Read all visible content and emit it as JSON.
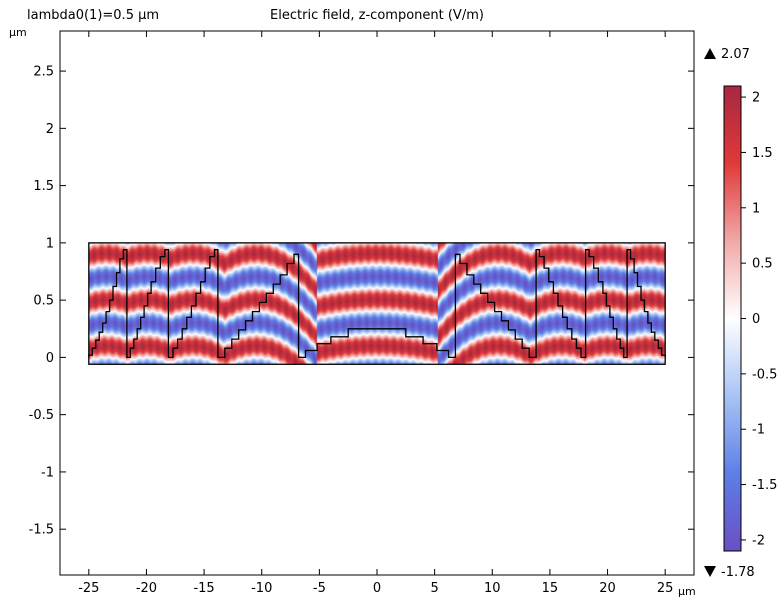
{
  "header": {
    "left_label": "lambda0(1)=0.5 µm",
    "title": "Electric field, z-component (V/m)"
  },
  "chart_data": {
    "type": "heatmap",
    "title": "Electric field, z-component (V/m)",
    "parameter_label": "lambda0(1)=0.5 µm",
    "xlabel": "µm",
    "ylabel": "µm",
    "xlim": [
      -27.5,
      27.5
    ],
    "ylim": [
      -1.9,
      2.85
    ],
    "x_ticks": [
      -25,
      -20,
      -15,
      -10,
      -5,
      0,
      5,
      10,
      15,
      20,
      25
    ],
    "y_ticks": [
      -1.5,
      -1,
      -0.5,
      0,
      0.5,
      1,
      1.5,
      2,
      2.5
    ],
    "x_tick_labels": [
      "-25",
      "-20",
      "-15",
      "-10",
      "-5",
      "0",
      "5",
      "10",
      "15",
      "20",
      "25"
    ],
    "y_tick_labels": [
      "-1.5",
      "-1",
      "-0.5",
      "0",
      "0.5",
      "1",
      "1.5",
      "2",
      "2.5"
    ],
    "field_region": {
      "x": [
        -25,
        25
      ],
      "y": [
        -0.06,
        1.0
      ]
    },
    "colorbar": {
      "max_label": "2.07",
      "min_label": "-1.78",
      "range": [
        -2.1,
        2.1
      ],
      "ticks": [
        2,
        1.5,
        1,
        0.5,
        0,
        -0.5,
        -1,
        -1.5,
        -2
      ],
      "tick_labels": [
        "2",
        "1.5",
        "1",
        "0.5",
        "0",
        "-0.5",
        "-1",
        "-1.5",
        "-2"
      ],
      "colors": [
        "#6a4fc4",
        "#5d7fe6",
        "#a8c4f4",
        "#ffffff",
        "#f2a8a8",
        "#e03a3a",
        "#a82840"
      ]
    },
    "structure_outline": [
      [
        -25,
        0
      ],
      [
        -25,
        0.02
      ],
      [
        -24.7,
        0.02
      ],
      [
        -24.7,
        0.08
      ],
      [
        -24.4,
        0.08
      ],
      [
        -24.4,
        0.15
      ],
      [
        -24.1,
        0.15
      ],
      [
        -24.1,
        0.22
      ],
      [
        -23.8,
        0.22
      ],
      [
        -23.8,
        0.3
      ],
      [
        -23.5,
        0.3
      ],
      [
        -23.5,
        0.4
      ],
      [
        -23.2,
        0.4
      ],
      [
        -23.2,
        0.5
      ],
      [
        -22.9,
        0.5
      ],
      [
        -22.9,
        0.62
      ],
      [
        -22.6,
        0.62
      ],
      [
        -22.6,
        0.74
      ],
      [
        -22.3,
        0.74
      ],
      [
        -22.3,
        0.86
      ],
      [
        -22.0,
        0.86
      ],
      [
        -22.0,
        0.94
      ],
      [
        -21.7,
        0.94
      ],
      [
        -21.7,
        0
      ],
      [
        -21.4,
        0
      ],
      [
        -21.4,
        0.08
      ],
      [
        -21.1,
        0.08
      ],
      [
        -21.1,
        0.16
      ],
      [
        -20.8,
        0.16
      ],
      [
        -20.8,
        0.25
      ],
      [
        -20.5,
        0.25
      ],
      [
        -20.5,
        0.35
      ],
      [
        -20.2,
        0.35
      ],
      [
        -20.2,
        0.45
      ],
      [
        -19.9,
        0.45
      ],
      [
        -19.9,
        0.56
      ],
      [
        -19.6,
        0.56
      ],
      [
        -19.6,
        0.66
      ],
      [
        -19.2,
        0.66
      ],
      [
        -19.2,
        0.78
      ],
      [
        -18.8,
        0.78
      ],
      [
        -18.8,
        0.88
      ],
      [
        -18.4,
        0.88
      ],
      [
        -18.4,
        0.94
      ],
      [
        -18.1,
        0.94
      ],
      [
        -18.1,
        0
      ],
      [
        -17.7,
        0
      ],
      [
        -17.7,
        0.08
      ],
      [
        -17.3,
        0.08
      ],
      [
        -17.3,
        0.16
      ],
      [
        -16.9,
        0.16
      ],
      [
        -16.9,
        0.25
      ],
      [
        -16.5,
        0.25
      ],
      [
        -16.5,
        0.35
      ],
      [
        -16.1,
        0.35
      ],
      [
        -16.1,
        0.45
      ],
      [
        -15.7,
        0.45
      ],
      [
        -15.7,
        0.56
      ],
      [
        -15.3,
        0.56
      ],
      [
        -15.3,
        0.66
      ],
      [
        -14.9,
        0.66
      ],
      [
        -14.9,
        0.78
      ],
      [
        -14.5,
        0.78
      ],
      [
        -14.5,
        0.88
      ],
      [
        -14.1,
        0.88
      ],
      [
        -14.1,
        0.94
      ],
      [
        -13.8,
        0.94
      ],
      [
        -13.8,
        0
      ],
      [
        -13.2,
        0
      ],
      [
        -13.2,
        0.08
      ],
      [
        -12.6,
        0.08
      ],
      [
        -12.6,
        0.16
      ],
      [
        -12.0,
        0.16
      ],
      [
        -12.0,
        0.24
      ],
      [
        -11.4,
        0.24
      ],
      [
        -11.4,
        0.32
      ],
      [
        -10.8,
        0.32
      ],
      [
        -10.8,
        0.4
      ],
      [
        -10.2,
        0.4
      ],
      [
        -10.2,
        0.48
      ],
      [
        -9.6,
        0.48
      ],
      [
        -9.6,
        0.56
      ],
      [
        -9.0,
        0.56
      ],
      [
        -9.0,
        0.64
      ],
      [
        -8.4,
        0.64
      ],
      [
        -8.4,
        0.72
      ],
      [
        -7.8,
        0.72
      ],
      [
        -7.8,
        0.82
      ],
      [
        -7.2,
        0.82
      ],
      [
        -7.2,
        0.9
      ],
      [
        -6.8,
        0.9
      ],
      [
        -6.8,
        0
      ],
      [
        -6.2,
        0
      ],
      [
        -6.2,
        0.06
      ],
      [
        -5.2,
        0.06
      ],
      [
        -5.2,
        0.12
      ],
      [
        -4.0,
        0.12
      ],
      [
        -4.0,
        0.18
      ],
      [
        -2.5,
        0.18
      ],
      [
        -2.5,
        0.25
      ],
      [
        2.5,
        0.25
      ],
      [
        2.5,
        0.18
      ],
      [
        4.0,
        0.18
      ],
      [
        4.0,
        0.12
      ],
      [
        5.2,
        0.12
      ],
      [
        5.2,
        0.06
      ],
      [
        6.2,
        0.06
      ],
      [
        6.2,
        0
      ],
      [
        6.8,
        0
      ],
      [
        6.8,
        0.9
      ],
      [
        7.2,
        0.9
      ],
      [
        7.2,
        0.82
      ],
      [
        7.8,
        0.82
      ],
      [
        7.8,
        0.72
      ],
      [
        8.4,
        0.72
      ],
      [
        8.4,
        0.64
      ],
      [
        9.0,
        0.64
      ],
      [
        9.0,
        0.56
      ],
      [
        9.6,
        0.56
      ],
      [
        9.6,
        0.48
      ],
      [
        10.2,
        0.48
      ],
      [
        10.2,
        0.4
      ],
      [
        10.8,
        0.4
      ],
      [
        10.8,
        0.32
      ],
      [
        11.4,
        0.32
      ],
      [
        11.4,
        0.24
      ],
      [
        12.0,
        0.24
      ],
      [
        12.0,
        0.16
      ],
      [
        12.6,
        0.16
      ],
      [
        12.6,
        0.08
      ],
      [
        13.2,
        0.08
      ],
      [
        13.2,
        0
      ],
      [
        13.8,
        0
      ],
      [
        13.8,
        0.94
      ],
      [
        14.1,
        0.94
      ],
      [
        14.1,
        0.88
      ],
      [
        14.5,
        0.88
      ],
      [
        14.5,
        0.78
      ],
      [
        14.9,
        0.78
      ],
      [
        14.9,
        0.66
      ],
      [
        15.3,
        0.66
      ],
      [
        15.3,
        0.56
      ],
      [
        15.7,
        0.56
      ],
      [
        15.7,
        0.45
      ],
      [
        16.1,
        0.45
      ],
      [
        16.1,
        0.35
      ],
      [
        16.5,
        0.35
      ],
      [
        16.5,
        0.25
      ],
      [
        16.9,
        0.25
      ],
      [
        16.9,
        0.16
      ],
      [
        17.3,
        0.16
      ],
      [
        17.3,
        0.08
      ],
      [
        17.7,
        0.08
      ],
      [
        17.7,
        0
      ],
      [
        18.1,
        0
      ],
      [
        18.1,
        0.94
      ],
      [
        18.4,
        0.94
      ],
      [
        18.4,
        0.88
      ],
      [
        18.8,
        0.88
      ],
      [
        18.8,
        0.78
      ],
      [
        19.2,
        0.78
      ],
      [
        19.2,
        0.66
      ],
      [
        19.6,
        0.66
      ],
      [
        19.6,
        0.56
      ],
      [
        19.9,
        0.56
      ],
      [
        19.9,
        0.45
      ],
      [
        20.2,
        0.45
      ],
      [
        20.2,
        0.35
      ],
      [
        20.5,
        0.35
      ],
      [
        20.5,
        0.25
      ],
      [
        20.8,
        0.25
      ],
      [
        20.8,
        0.16
      ],
      [
        21.1,
        0.16
      ],
      [
        21.1,
        0.08
      ],
      [
        21.4,
        0.08
      ],
      [
        21.4,
        0
      ],
      [
        21.7,
        0
      ],
      [
        21.7,
        0.94
      ],
      [
        22.0,
        0.94
      ],
      [
        22.0,
        0.86
      ],
      [
        22.3,
        0.86
      ],
      [
        22.3,
        0.74
      ],
      [
        22.6,
        0.74
      ],
      [
        22.6,
        0.62
      ],
      [
        22.9,
        0.62
      ],
      [
        22.9,
        0.5
      ],
      [
        23.2,
        0.5
      ],
      [
        23.2,
        0.4
      ],
      [
        23.5,
        0.4
      ],
      [
        23.5,
        0.3
      ],
      [
        23.8,
        0.3
      ],
      [
        23.8,
        0.22
      ],
      [
        24.1,
        0.22
      ],
      [
        24.1,
        0.15
      ],
      [
        24.4,
        0.15
      ],
      [
        24.4,
        0.08
      ],
      [
        24.7,
        0.08
      ],
      [
        24.7,
        0.02
      ],
      [
        25,
        0.02
      ],
      [
        25,
        0
      ]
    ]
  }
}
